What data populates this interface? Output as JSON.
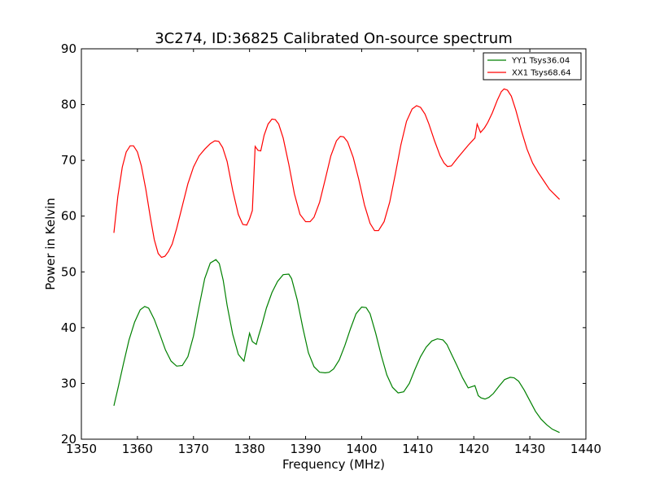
{
  "chart_data": {
    "type": "line",
    "title": "3C274, ID:36825 Calibrated On-source spectrum",
    "xlabel": "Frequency (MHz)",
    "ylabel": "Power in Kelvin",
    "xlim": [
      1350,
      1440
    ],
    "ylim": [
      20,
      90
    ],
    "xticks": [
      1350,
      1360,
      1370,
      1380,
      1390,
      1400,
      1410,
      1420,
      1430,
      1440
    ],
    "yticks": [
      20,
      30,
      40,
      50,
      60,
      70,
      80,
      90
    ],
    "xtick_labels": [
      "1350",
      "1360",
      "1370",
      "1380",
      "1390",
      "1400",
      "1410",
      "1420",
      "1430",
      "1440"
    ],
    "ytick_labels": [
      "20",
      "30",
      "40",
      "50",
      "60",
      "70",
      "80",
      "90"
    ],
    "grid": false,
    "legend_position": "top-right",
    "series": [
      {
        "name": "YY1 Tsys36.04",
        "color": "#008000",
        "x": [
          1355.8,
          1356.5,
          1357.5,
          1358.5,
          1359.5,
          1360.5,
          1361.3,
          1362.0,
          1363.0,
          1364.0,
          1365.0,
          1366.0,
          1367.0,
          1368.0,
          1369.0,
          1370.0,
          1371.0,
          1372.0,
          1373.0,
          1374.0,
          1374.6,
          1375.3,
          1376.0,
          1377.0,
          1378.0,
          1379.0,
          1380.0,
          1380.5,
          1381.2,
          1381.6,
          1382.2,
          1383.0,
          1384.0,
          1385.0,
          1386.0,
          1387.0,
          1387.5,
          1388.5,
          1389.5,
          1390.5,
          1391.5,
          1392.5,
          1393.5,
          1394.2,
          1395.0,
          1396.0,
          1397.0,
          1398.0,
          1399.0,
          1400.0,
          1400.8,
          1401.5,
          1402.5,
          1403.5,
          1404.5,
          1405.5,
          1406.5,
          1407.5,
          1408.5,
          1409.5,
          1410.5,
          1411.5,
          1412.5,
          1413.5,
          1414.5,
          1415.2,
          1416.0,
          1417.0,
          1418.0,
          1419.0,
          1420.2,
          1420.8,
          1421.3,
          1422.0,
          1422.7,
          1423.5,
          1424.5,
          1425.5,
          1426.5,
          1427.2,
          1428.0,
          1429.0,
          1430.0,
          1431.0,
          1432.0,
          1433.0,
          1434.0,
          1435.3
        ],
        "y": [
          26.0,
          29.0,
          33.5,
          37.8,
          41.0,
          43.2,
          43.8,
          43.5,
          41.5,
          38.8,
          36.0,
          34.0,
          33.1,
          33.2,
          34.8,
          38.5,
          43.8,
          48.8,
          51.6,
          52.2,
          51.5,
          48.5,
          44.0,
          38.8,
          35.2,
          34.0,
          39.0,
          37.5,
          37.0,
          38.5,
          40.5,
          43.5,
          46.3,
          48.3,
          49.5,
          49.6,
          48.8,
          45.0,
          40.0,
          35.5,
          33.0,
          32.0,
          31.9,
          32.0,
          32.6,
          34.2,
          36.8,
          39.8,
          42.5,
          43.7,
          43.6,
          42.5,
          39.0,
          35.0,
          31.5,
          29.3,
          28.3,
          28.5,
          30.0,
          32.5,
          34.8,
          36.5,
          37.6,
          38.0,
          37.8,
          37.0,
          35.3,
          33.2,
          31.0,
          29.2,
          29.6,
          27.8,
          27.4,
          27.2,
          27.5,
          28.2,
          29.5,
          30.7,
          31.1,
          31.0,
          30.4,
          28.8,
          26.9,
          25.0,
          23.6,
          22.6,
          21.8,
          21.2
        ]
      },
      {
        "name": "XX1 Tsys68.64",
        "color": "#ff0000",
        "x": [
          1355.8,
          1356.5,
          1357.3,
          1358.0,
          1358.7,
          1359.3,
          1360.0,
          1360.7,
          1361.5,
          1362.3,
          1363.0,
          1363.7,
          1364.3,
          1364.9,
          1365.5,
          1366.2,
          1367.0,
          1368.0,
          1369.0,
          1370.0,
          1371.0,
          1372.0,
          1373.0,
          1373.8,
          1374.5,
          1375.2,
          1376.0,
          1377.0,
          1378.0,
          1378.8,
          1379.5,
          1380.0,
          1380.5,
          1381.0,
          1381.5,
          1382.0,
          1382.6,
          1383.3,
          1384.0,
          1384.6,
          1385.2,
          1386.0,
          1387.0,
          1388.0,
          1389.0,
          1390.0,
          1390.8,
          1391.5,
          1392.5,
          1393.5,
          1394.5,
          1395.5,
          1396.2,
          1396.8,
          1397.5,
          1398.5,
          1399.5,
          1400.5,
          1401.5,
          1402.3,
          1403.0,
          1404.0,
          1405.0,
          1406.0,
          1407.0,
          1408.0,
          1409.0,
          1409.8,
          1410.5,
          1411.3,
          1412.0,
          1413.0,
          1414.0,
          1414.7,
          1415.3,
          1416.0,
          1417.0,
          1418.0,
          1419.0,
          1420.2,
          1420.6,
          1421.2,
          1421.9,
          1422.5,
          1423.3,
          1424.2,
          1424.9,
          1425.4,
          1426.0,
          1426.7,
          1427.5,
          1428.5,
          1429.5,
          1430.5,
          1431.5,
          1432.5,
          1433.5,
          1434.5,
          1435.3
        ],
        "y": [
          57.0,
          63.5,
          68.8,
          71.5,
          72.6,
          72.6,
          71.5,
          69.0,
          64.8,
          59.8,
          55.8,
          53.3,
          52.6,
          52.8,
          53.6,
          55.0,
          57.8,
          61.8,
          65.8,
          68.8,
          70.8,
          72.0,
          73.0,
          73.5,
          73.4,
          72.3,
          69.8,
          64.6,
          60.3,
          58.5,
          58.4,
          59.5,
          61.0,
          72.5,
          71.8,
          71.7,
          74.5,
          76.5,
          77.4,
          77.3,
          76.5,
          74.0,
          69.3,
          64.0,
          60.3,
          59.0,
          59.0,
          59.8,
          62.5,
          66.6,
          70.8,
          73.5,
          74.3,
          74.2,
          73.3,
          70.5,
          66.5,
          62.0,
          58.7,
          57.4,
          57.4,
          59.0,
          62.5,
          67.5,
          72.8,
          77.0,
          79.2,
          79.8,
          79.5,
          78.3,
          76.5,
          73.5,
          70.8,
          69.5,
          68.9,
          69.0,
          70.3,
          71.5,
          72.7,
          74.0,
          76.5,
          75.0,
          75.8,
          76.8,
          78.5,
          80.8,
          82.3,
          82.8,
          82.6,
          81.5,
          79.0,
          75.3,
          72.0,
          69.5,
          67.8,
          66.3,
          64.8,
          63.8,
          63.0
        ]
      }
    ]
  }
}
